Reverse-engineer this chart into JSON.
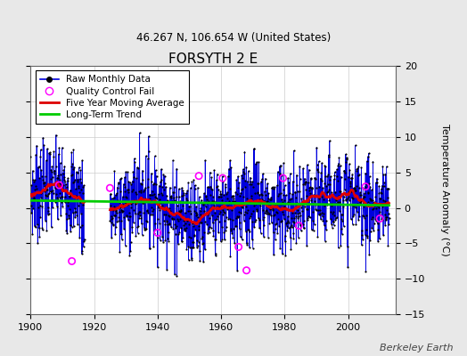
{
  "title": "FORSYTH 2 E",
  "subtitle": "46.267 N, 106.654 W (United States)",
  "ylabel": "Temperature Anomaly (°C)",
  "attribution": "Berkeley Earth",
  "xlim": [
    1900,
    2015
  ],
  "ylim": [
    -15,
    20
  ],
  "yticks": [
    -15,
    -10,
    -5,
    0,
    5,
    10,
    15,
    20
  ],
  "xticks": [
    1900,
    1920,
    1940,
    1960,
    1980,
    2000
  ],
  "bg_color": "#e8e8e8",
  "plot_bg_color": "#ffffff",
  "raw_line_color": "#0000dd",
  "raw_marker_color": "#000000",
  "qc_fail_color": "#ff00ff",
  "moving_avg_color": "#dd0000",
  "trend_color": "#00cc00",
  "seed": 7,
  "noise_std": 3.2,
  "moving_avg_window": 60,
  "trend_slope": 0.004,
  "trend_intercept": 0.3
}
